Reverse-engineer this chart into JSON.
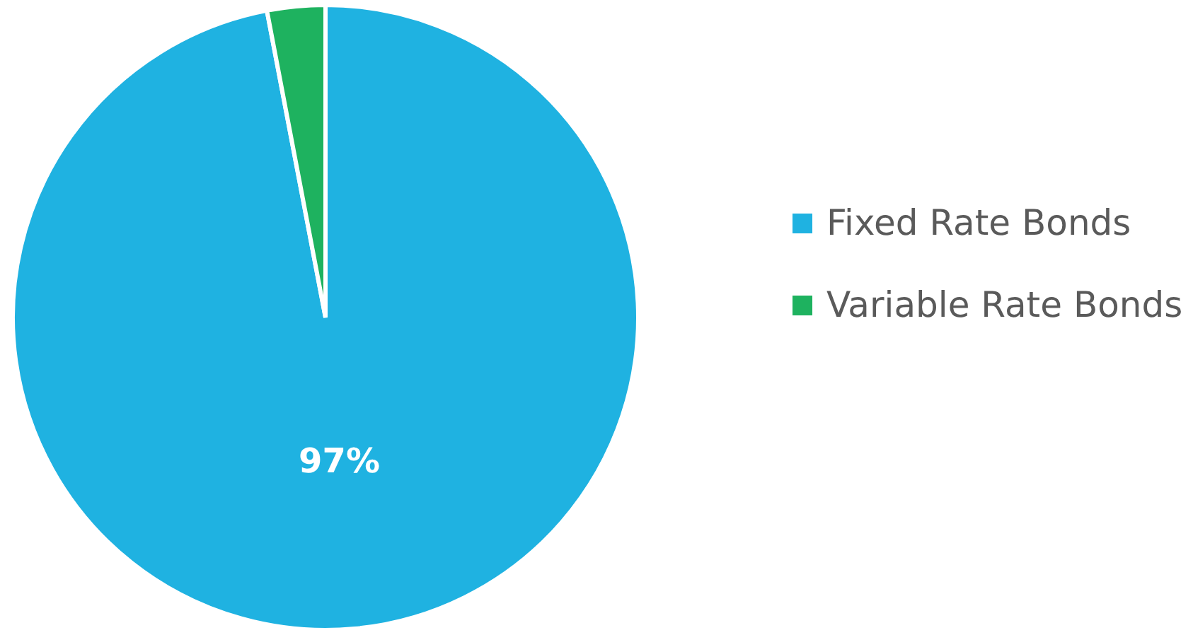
{
  "chart_data": {
    "type": "pie",
    "categories": [
      "Fixed Rate Bonds",
      "Variable Rate Bonds"
    ],
    "values": [
      97,
      3
    ],
    "colors": [
      "#1fb2e1",
      "#1eb25f"
    ],
    "value_labels": [
      "97%",
      null
    ],
    "legend": "right"
  }
}
